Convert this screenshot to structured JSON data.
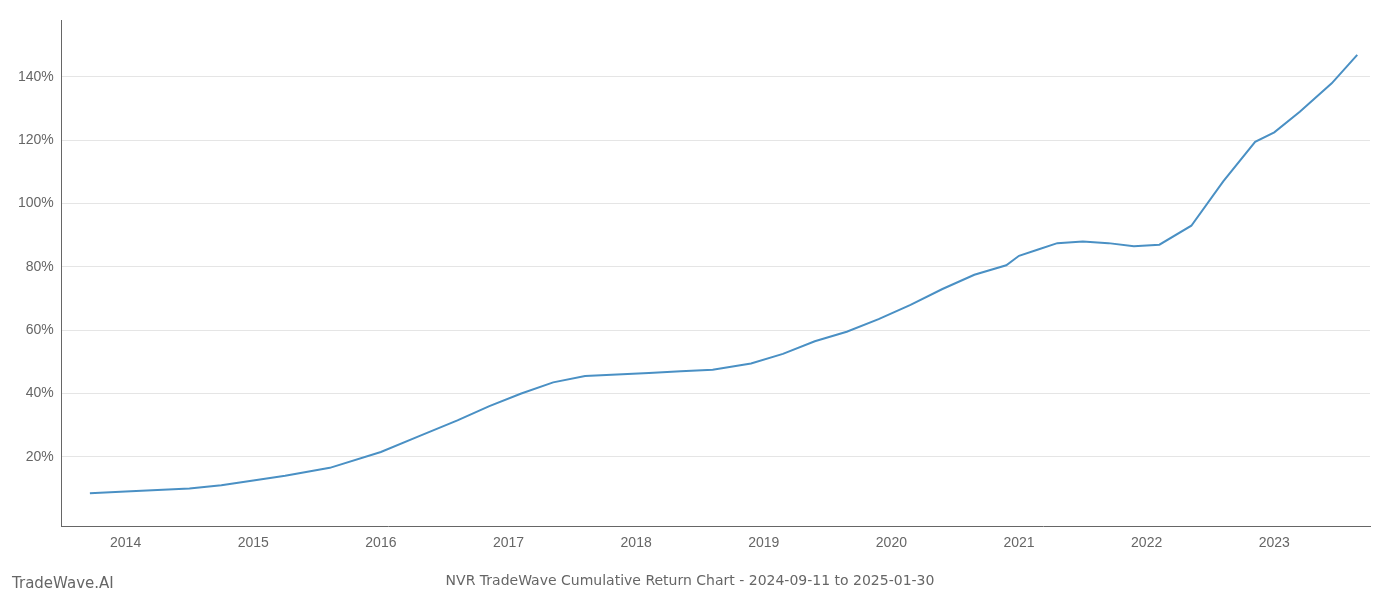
{
  "chart_data": {
    "type": "line",
    "title": "NVR TradeWave Cumulative Return Chart - 2024-09-11 to 2025-01-30",
    "annotations": [
      "TradeWave.AI"
    ],
    "x": [
      2013.72,
      2014.0,
      2014.25,
      2014.5,
      2014.75,
      2015.0,
      2015.25,
      2015.6,
      2016.0,
      2016.3,
      2016.6,
      2016.85,
      2017.1,
      2017.35,
      2017.6,
      2017.85,
      2018.1,
      2018.35,
      2018.6,
      2018.9,
      2019.15,
      2019.4,
      2019.65,
      2019.9,
      2020.15,
      2020.4,
      2020.65,
      2020.9,
      2021.0,
      2021.15,
      2021.3,
      2021.5,
      2021.7,
      2021.9,
      2022.1,
      2022.35,
      2022.6,
      2022.85,
      2023.0,
      2023.2,
      2023.45,
      2023.65
    ],
    "values": [
      8.5,
      9.0,
      9.5,
      10.0,
      11.0,
      12.5,
      14.0,
      16.5,
      21.5,
      26.5,
      31.5,
      36.0,
      40.0,
      43.5,
      45.5,
      46.0,
      46.5,
      47.0,
      47.5,
      49.5,
      52.5,
      56.5,
      59.5,
      63.5,
      68.0,
      73.0,
      77.5,
      80.5,
      83.5,
      85.5,
      87.5,
      88.0,
      87.5,
      86.5,
      87.0,
      93.0,
      107.0,
      119.5,
      122.5,
      129.0,
      138.0,
      147.0
    ],
    "color": "#4a90c4",
    "xlim": [
      2013.5,
      2023.75
    ],
    "xticks": [
      2014,
      2015,
      2016,
      2017,
      2018,
      2019,
      2020,
      2021,
      2022,
      2023
    ],
    "ylim": [
      -2,
      158
    ],
    "yticks": [
      {
        "value": 20,
        "label": "20%"
      },
      {
        "value": 40,
        "label": "40%"
      },
      {
        "value": 60,
        "label": "60%"
      },
      {
        "value": 80,
        "label": "80%"
      },
      {
        "value": 100,
        "label": "100%"
      },
      {
        "value": 120,
        "label": "120%"
      },
      {
        "value": 140,
        "label": "140%"
      }
    ],
    "grid": "y"
  }
}
